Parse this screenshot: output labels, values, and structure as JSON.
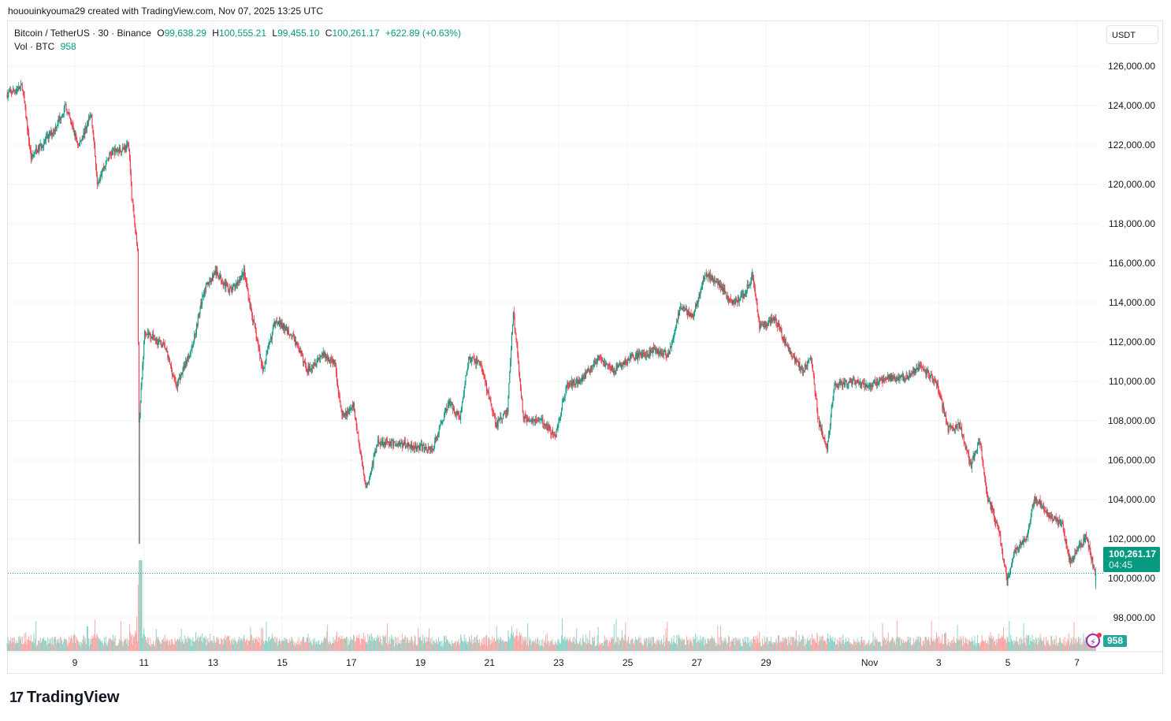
{
  "credit": "hououinkyouma29 created with TradingView.com, Nov 07, 2025 13:25 UTC",
  "legend": {
    "symbol": "Bitcoin / TetherUS · 30 · Binance",
    "o_label": "O",
    "open": "99,638.29",
    "h_label": "H",
    "high": "100,555.21",
    "l_label": "L",
    "low": "99,455.10",
    "c_label": "C",
    "close": "100,261.17",
    "change": "+622.89 (+0.63%)",
    "vol_label": "Vol · BTC",
    "vol_value": "958"
  },
  "currency": "USDT",
  "last_price_label": "100,261.17",
  "countdown": "04:45",
  "volume_label": "958",
  "logo_text": "TradingView",
  "colors": {
    "up": "#089981",
    "down": "#f23645",
    "vol_up": "#8fd3c8",
    "vol_down": "#f7a9a7"
  },
  "chart_data": {
    "type": "candlestick",
    "interval": "30",
    "ylim": [
      97000,
      127000
    ],
    "y_ticks": [
      "126,000.00",
      "124,000.00",
      "122,000.00",
      "120,000.00",
      "118,000.00",
      "116,000.00",
      "114,000.00",
      "112,000.00",
      "110,000.00",
      "108,000.00",
      "106,000.00",
      "104,000.00",
      "102,000.00",
      "100,000.00",
      "98,000.00"
    ],
    "x_ticks": [
      {
        "label": "9",
        "date": "Oct 9"
      },
      {
        "label": "11",
        "date": "Oct 11"
      },
      {
        "label": "13",
        "date": "Oct 13"
      },
      {
        "label": "15",
        "date": "Oct 15"
      },
      {
        "label": "17",
        "date": "Oct 17"
      },
      {
        "label": "19",
        "date": "Oct 19"
      },
      {
        "label": "21",
        "date": "Oct 21"
      },
      {
        "label": "23",
        "date": "Oct 23"
      },
      {
        "label": "25",
        "date": "Oct 25"
      },
      {
        "label": "27",
        "date": "Oct 27"
      },
      {
        "label": "29",
        "date": "Oct 29"
      },
      {
        "label": "Nov",
        "date": "Nov 1"
      },
      {
        "label": "3",
        "date": "Nov 3"
      },
      {
        "label": "5",
        "date": "Nov 5"
      },
      {
        "label": "7",
        "date": "Nov 7"
      }
    ],
    "grid": true,
    "approx_close_path": [
      [
        "Oct 7 01:00",
        124560
      ],
      [
        "Oct 7 12:00",
        124960
      ],
      [
        "Oct 7 18:00",
        121360
      ],
      [
        "Oct 8 10:00",
        122760
      ],
      [
        "Oct 8 18:00",
        123960
      ],
      [
        "Oct 9 03:00",
        121960
      ],
      [
        "Oct 9 12:00",
        123560
      ],
      [
        "Oct 9 16:00",
        120160
      ],
      [
        "Oct 10 01:00",
        121560
      ],
      [
        "Oct 10 14:00",
        121960
      ],
      [
        "Oct 10 16:00",
        119360
      ],
      [
        "Oct 10 20:00",
        116560
      ],
      [
        "Oct 10 21:00",
        107760
      ],
      [
        "Oct 11 01:00",
        112560
      ],
      [
        "Oct 11 15:00",
        111760
      ],
      [
        "Oct 11 23:00",
        109760
      ],
      [
        "Oct 12 10:00",
        111760
      ],
      [
        "Oct 12 18:00",
        114560
      ],
      [
        "Oct 13 02:00",
        115560
      ],
      [
        "Oct 13 13:00",
        114560
      ],
      [
        "Oct 13 22:00",
        115560
      ],
      [
        "Oct 14 03:00",
        113560
      ],
      [
        "Oct 14 11:00",
        110560
      ],
      [
        "Oct 14 20:00",
        113160
      ],
      [
        "Oct 15 09:00",
        112160
      ],
      [
        "Oct 15 18:00",
        110560
      ],
      [
        "Oct 16 04:00",
        111360
      ],
      [
        "Oct 16 13:00",
        110960
      ],
      [
        "Oct 16 18:00",
        108160
      ],
      [
        "Oct 17 02:00",
        108760
      ],
      [
        "Oct 17 08:00",
        105760
      ],
      [
        "Oct 17 11:00",
        104560
      ],
      [
        "Oct 17 19:00",
        106960
      ],
      [
        "Oct 18 17:00",
        106760
      ],
      [
        "Oct 19 09:00",
        106560
      ],
      [
        "Oct 19 20:00",
        108960
      ],
      [
        "Oct 20 04:00",
        108160
      ],
      [
        "Oct 20 10:00",
        111160
      ],
      [
        "Oct 20 18:00",
        110960
      ],
      [
        "Oct 21 05:00",
        107760
      ],
      [
        "Oct 21 13:00",
        108560
      ],
      [
        "Oct 21 17:00",
        113560
      ],
      [
        "Oct 21 21:00",
        110560
      ],
      [
        "Oct 22 00:00",
        108160
      ],
      [
        "Oct 22 14:00",
        107960
      ],
      [
        "Oct 22 22:00",
        107160
      ],
      [
        "Oct 23 06:00",
        109760
      ],
      [
        "Oct 23 17:00",
        110160
      ],
      [
        "Oct 24 04:00",
        111160
      ],
      [
        "Oct 24 15:00",
        110560
      ],
      [
        "Oct 25 02:00",
        111160
      ],
      [
        "Oct 25 18:00",
        111560
      ],
      [
        "Oct 26 05:00",
        111360
      ],
      [
        "Oct 26 13:00",
        113760
      ],
      [
        "Oct 26 22:00",
        113360
      ],
      [
        "Oct 27 06:00",
        115360
      ],
      [
        "Oct 27 14:00",
        115160
      ],
      [
        "Oct 28 01:00",
        113960
      ],
      [
        "Oct 28 09:00",
        114360
      ],
      [
        "Oct 28 15:00",
        115360
      ],
      [
        "Oct 28 20:00",
        112760
      ],
      [
        "Oct 29 07:00",
        113160
      ],
      [
        "Oct 29 15:00",
        111760
      ],
      [
        "Oct 30 02:00",
        110560
      ],
      [
        "Oct 30 08:00",
        111160
      ],
      [
        "Oct 30 13:00",
        107960
      ],
      [
        "Oct 30 19:00",
        106560
      ],
      [
        "Oct 31 00:00",
        109760
      ],
      [
        "Oct 31 11:00",
        109960
      ],
      [
        "Nov 1 00:00",
        109760
      ],
      [
        "Nov 1 11:00",
        110160
      ],
      [
        "Nov 2 01:00",
        110160
      ],
      [
        "Nov 2 12:00",
        110760
      ],
      [
        "Nov 2 23:00",
        109960
      ],
      [
        "Nov 3 07:00",
        107560
      ],
      [
        "Nov 3 15:00",
        107760
      ],
      [
        "Nov 3 23:00",
        105760
      ],
      [
        "Nov 4 05:00",
        106960
      ],
      [
        "Nov 4 10:00",
        104160
      ],
      [
        "Nov 4 18:00",
        102560
      ],
      [
        "Nov 5 00:00",
        99760
      ],
      [
        "Nov 5 05:00",
        101360
      ],
      [
        "Nov 5 14:00",
        102160
      ],
      [
        "Nov 5 19:00",
        104160
      ],
      [
        "Nov 6 06:00",
        103160
      ],
      [
        "Nov 6 14:00",
        102760
      ],
      [
        "Nov 6 20:00",
        100760
      ],
      [
        "Nov 7 07:00",
        102160
      ],
      [
        "Nov 7 13:00",
        100261.17
      ]
    ],
    "last": {
      "open": 99638.29,
      "high": 100555.21,
      "low": 99455.1,
      "close": 100261.17,
      "volume": 958
    },
    "notable_wick_low": {
      "date": "Oct 10 21:00",
      "price": 101750
    }
  }
}
